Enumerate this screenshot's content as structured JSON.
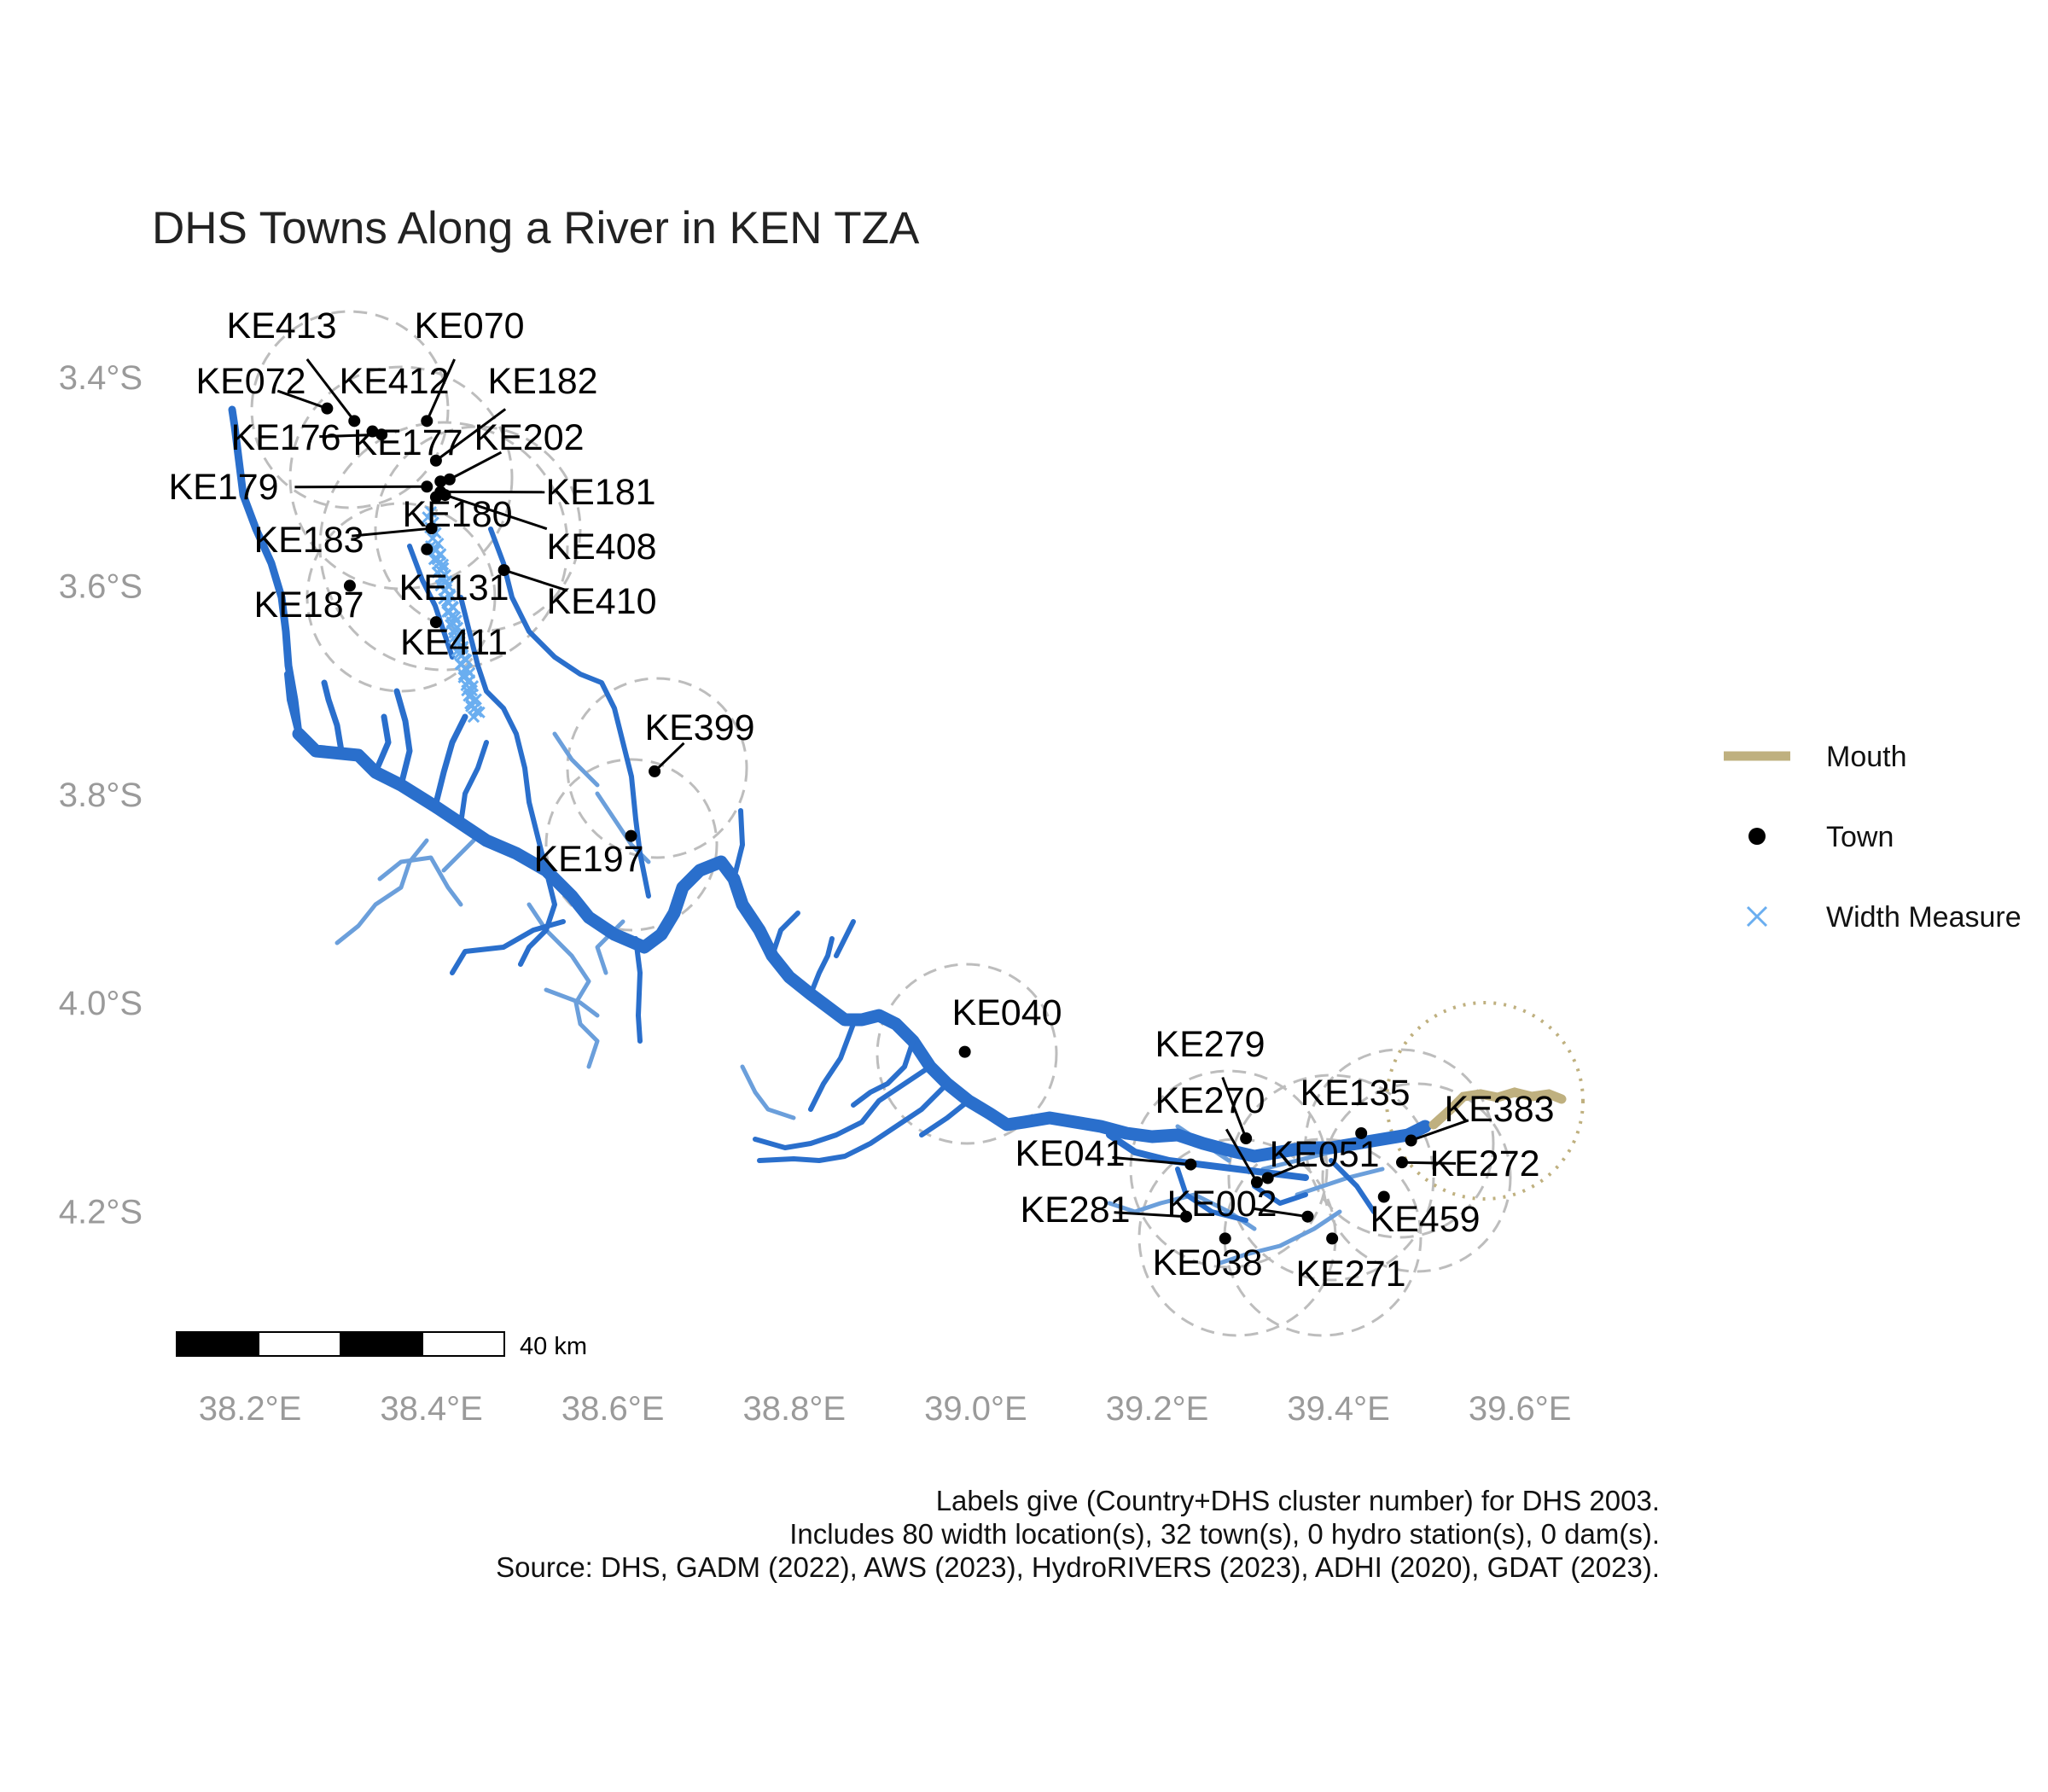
{
  "title": "DHS Towns Along a River in KEN TZA",
  "axes": {
    "lat_ticks": [
      {
        "value": -3.4,
        "label": "3.4°S"
      },
      {
        "value": -3.6,
        "label": "3.6°S"
      },
      {
        "value": -3.8,
        "label": "3.8°S"
      },
      {
        "value": -4.0,
        "label": "4.0°S"
      },
      {
        "value": -4.2,
        "label": "4.2°S"
      }
    ],
    "lon_ticks": [
      {
        "value": 38.2,
        "label": "38.2°E"
      },
      {
        "value": 38.4,
        "label": "38.4°E"
      },
      {
        "value": 38.6,
        "label": "38.6°E"
      },
      {
        "value": 38.8,
        "label": "38.8°E"
      },
      {
        "value": 39.0,
        "label": "39.0°E"
      },
      {
        "value": 39.2,
        "label": "39.2°E"
      },
      {
        "value": 39.4,
        "label": "39.4°E"
      },
      {
        "value": 39.6,
        "label": "39.6°E"
      }
    ]
  },
  "legend": {
    "mouth": "Mouth",
    "town": "Town",
    "width_measure": "Width Measure"
  },
  "scale_bar": {
    "label": "40 km"
  },
  "caption": [
    "Labels give (Country+DHS cluster number) for DHS 2003.",
    "Includes 80 width location(s), 32 town(s), 0 hydro station(s), 0 dam(s).",
    "Source: DHS, GADM (2022), AWS (2023), HydroRIVERS (2023), ADHI (2020), GDAT (2023)."
  ],
  "colors": {
    "river_main": "#2a6fcc",
    "river_minor": "#6b9fdb",
    "width_measure": "#6aaef0",
    "mouth": "#bfb07f",
    "town": "#000000",
    "buffer": "#bdbdbd",
    "axis_text": "#9a9a9a"
  },
  "towns": [
    {
      "id": "KE413",
      "lon": 38.315,
      "lat": -3.442
    },
    {
      "id": "KE070",
      "lon": 38.395,
      "lat": -3.442
    },
    {
      "id": "KE072",
      "lon": 38.285,
      "lat": -3.43
    },
    {
      "id": "KE412",
      "lon": 38.335,
      "lat": -3.452
    },
    {
      "id": "KE182",
      "lon": 38.405,
      "lat": -3.48
    },
    {
      "id": "KE176",
      "lon": 38.345,
      "lat": -3.455
    },
    {
      "id": "KE177",
      "lon": 38.41,
      "lat": -3.5
    },
    {
      "id": "KE202",
      "lon": 38.42,
      "lat": -3.498
    },
    {
      "id": "KE179",
      "lon": 38.395,
      "lat": -3.505
    },
    {
      "id": "KE181",
      "lon": 38.41,
      "lat": -3.51
    },
    {
      "id": "KE180",
      "lon": 38.405,
      "lat": -3.515
    },
    {
      "id": "KE408",
      "lon": 38.415,
      "lat": -3.513
    },
    {
      "id": "KE183",
      "lon": 38.4,
      "lat": -3.545
    },
    {
      "id": "KE131",
      "lon": 38.395,
      "lat": -3.565
    },
    {
      "id": "KE410",
      "lon": 38.48,
      "lat": -3.585
    },
    {
      "id": "KE187",
      "lon": 38.31,
      "lat": -3.6
    },
    {
      "id": "KE411",
      "lon": 38.405,
      "lat": -3.635
    },
    {
      "id": "KE399",
      "lon": 38.646,
      "lat": -3.778
    },
    {
      "id": "KE197",
      "lon": 38.62,
      "lat": -3.84
    },
    {
      "id": "KE040",
      "lon": 38.988,
      "lat": -4.047
    },
    {
      "id": "KE279",
      "lon": 39.298,
      "lat": -4.13
    },
    {
      "id": "KE135",
      "lon": 39.425,
      "lat": -4.125
    },
    {
      "id": "KE383",
      "lon": 39.48,
      "lat": -4.132
    },
    {
      "id": "KE270",
      "lon": 39.31,
      "lat": -4.172
    },
    {
      "id": "KE041",
      "lon": 39.237,
      "lat": -4.155
    },
    {
      "id": "KE051",
      "lon": 39.322,
      "lat": -4.168
    },
    {
      "id": "KE272",
      "lon": 39.47,
      "lat": -4.153
    },
    {
      "id": "KE459",
      "lon": 39.45,
      "lat": -4.186
    },
    {
      "id": "KE002",
      "lon": 39.366,
      "lat": -4.205
    },
    {
      "id": "KE281",
      "lon": 39.232,
      "lat": -4.205
    },
    {
      "id": "KE038",
      "lon": 39.275,
      "lat": -4.226
    },
    {
      "id": "KE271",
      "lon": 39.393,
      "lat": -4.226
    }
  ]
}
